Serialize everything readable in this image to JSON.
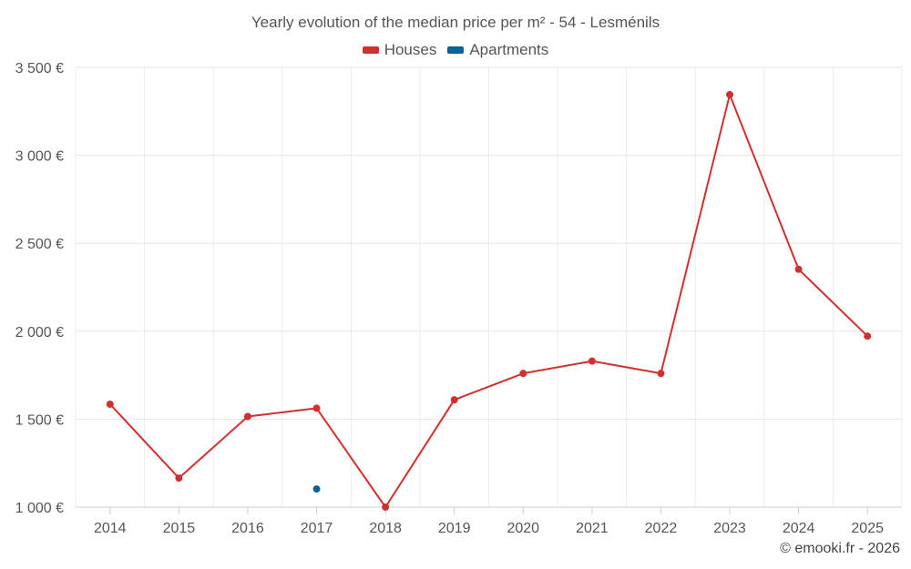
{
  "chart_data": {
    "type": "line",
    "title": "Yearly evolution of the median price per m² - 54 - Lesménils",
    "categories": [
      "2014",
      "2015",
      "2016",
      "2017",
      "2018",
      "2019",
      "2020",
      "2021",
      "2022",
      "2023",
      "2024",
      "2025"
    ],
    "series": [
      {
        "name": "Houses",
        "color": "#d32f2f",
        "values": [
          1585,
          1165,
          1515,
          1562,
          1000,
          1610,
          1760,
          1830,
          1760,
          3345,
          2352,
          1972
        ]
      },
      {
        "name": "Apartments",
        "color": "#0d6296",
        "values": [
          null,
          null,
          null,
          1103,
          null,
          null,
          null,
          null,
          null,
          null,
          null,
          null
        ]
      }
    ],
    "ylim": [
      1000,
      3500
    ],
    "yticks": [
      1000,
      1500,
      2000,
      2500,
      3000,
      3500
    ],
    "ytick_labels": [
      "1 000 €",
      "1 500 €",
      "2 000 €",
      "2 500 €",
      "3 000 €",
      "3 500 €"
    ],
    "xlabel": "",
    "ylabel": "",
    "grid": true,
    "legend": "top-center"
  },
  "credit": "© emooki.fr - 2026"
}
